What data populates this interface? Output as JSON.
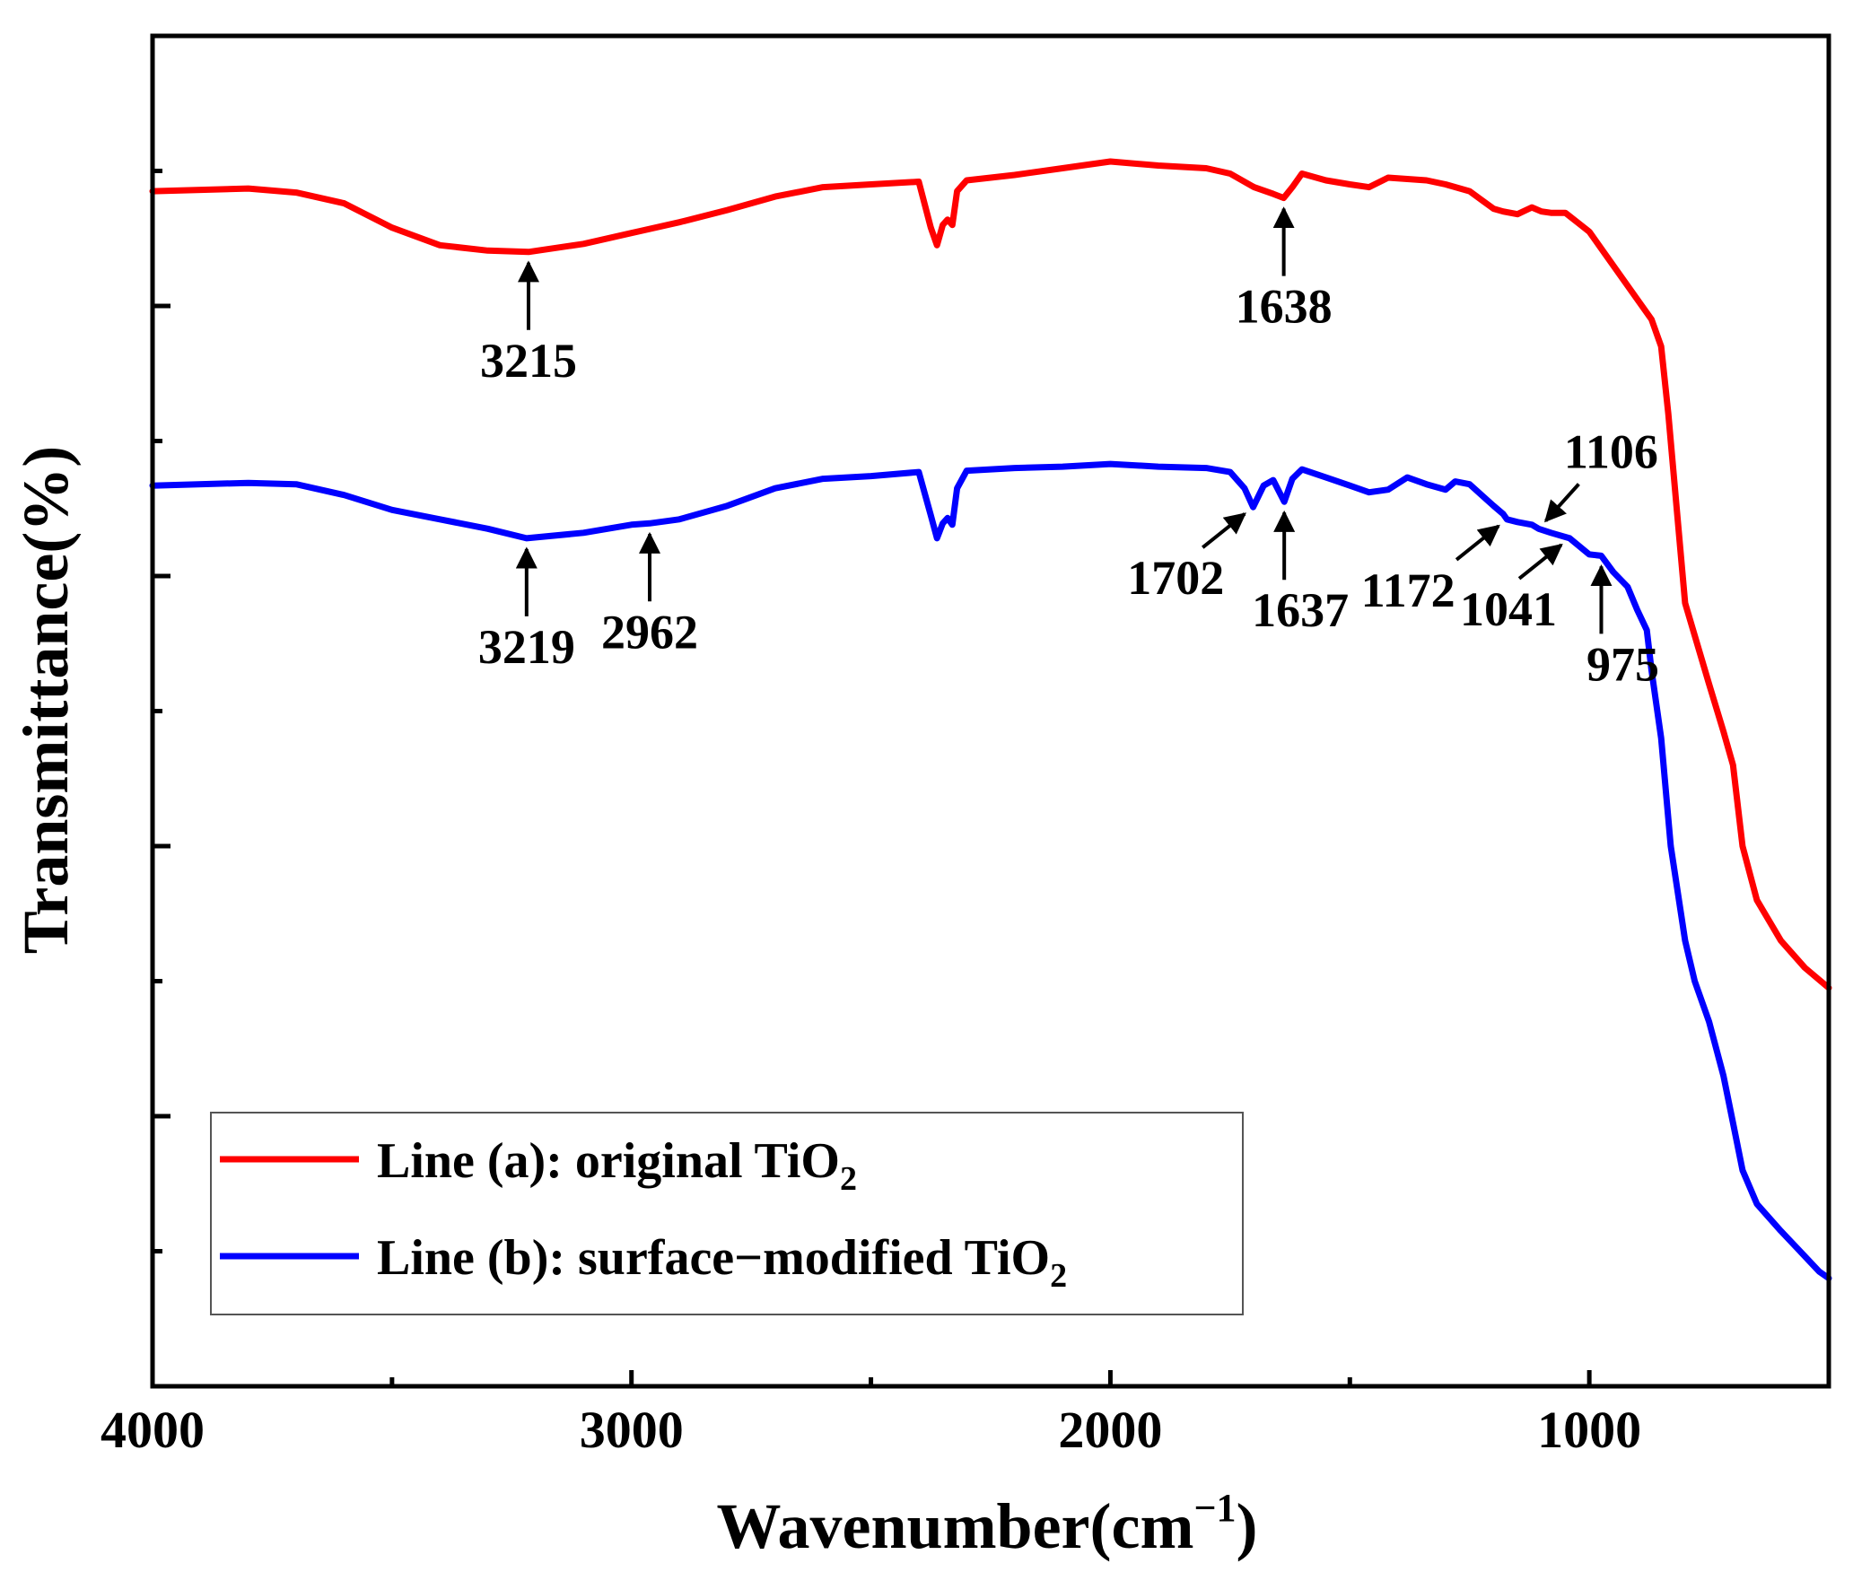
{
  "chart_data": {
    "type": "line",
    "title": "",
    "xlabel": "Wavenumber(cm",
    "xlabel_sup": "−1",
    "xlabel_close": ")",
    "ylabel": "Transmittance(%)",
    "xlim": [
      4000,
      500
    ],
    "ylim": [
      0,
      100
    ],
    "x_ticks": [
      4000,
      3000,
      2000,
      1000
    ],
    "x_tick_labels": [
      "4000",
      "3000",
      "2000",
      "1000"
    ],
    "x_minor_ticks": [
      3500,
      2500,
      1500
    ],
    "y_ticks": [
      10,
      20,
      30,
      40,
      50,
      60,
      70,
      80,
      90,
      100
    ],
    "y_tick_labels": [],
    "legend_position": "bottom-left",
    "series": [
      {
        "name": "Line (a): original TiO",
        "name_sub": "2",
        "color": "#ff0000",
        "x": [
          4000,
          3800,
          3700,
          3600,
          3500,
          3400,
          3300,
          3215,
          3100,
          3000,
          2900,
          2800,
          2700,
          2600,
          2500,
          2400,
          2375,
          2362,
          2350,
          2340,
          2330,
          2320,
          2300,
          2200,
          2100,
          2000,
          1900,
          1800,
          1750,
          1700,
          1660,
          1638,
          1620,
          1600,
          1550,
          1500,
          1460,
          1420,
          1380,
          1340,
          1300,
          1250,
          1200,
          1180,
          1150,
          1120,
          1100,
          1080,
          1050,
          1000,
          950,
          900,
          870,
          850,
          835,
          820,
          800,
          750,
          720,
          700,
          680,
          650,
          600,
          550,
          500
        ],
        "y": [
          88.5,
          88.7,
          88.4,
          87.6,
          85.8,
          84.5,
          84.1,
          84.0,
          84.6,
          85.4,
          86.2,
          87.1,
          88.1,
          88.8,
          89.0,
          89.2,
          85.8,
          84.5,
          86.0,
          86.4,
          86.0,
          88.5,
          89.3,
          89.7,
          90.2,
          90.7,
          90.4,
          90.2,
          89.8,
          88.8,
          88.3,
          88.0,
          88.8,
          89.8,
          89.3,
          89.0,
          88.8,
          89.5,
          89.4,
          89.3,
          89.0,
          88.5,
          87.2,
          87.0,
          86.8,
          87.3,
          87.0,
          86.9,
          86.9,
          85.5,
          83.0,
          80.5,
          79.0,
          77.0,
          72.0,
          66.0,
          58.0,
          52.0,
          48.5,
          46.0,
          40.0,
          36.0,
          33.0,
          31.0,
          29.5
        ]
      },
      {
        "name": "Line (b): surface−modified TiO",
        "name_sub": "2",
        "color": "#0000ff",
        "x": [
          4000,
          3800,
          3700,
          3600,
          3500,
          3400,
          3300,
          3219,
          3100,
          3000,
          2962,
          2900,
          2800,
          2700,
          2600,
          2500,
          2400,
          2375,
          2362,
          2350,
          2340,
          2330,
          2320,
          2300,
          2200,
          2100,
          2000,
          1900,
          1800,
          1750,
          1720,
          1702,
          1680,
          1660,
          1637,
          1620,
          1600,
          1550,
          1500,
          1460,
          1420,
          1380,
          1340,
          1300,
          1280,
          1250,
          1200,
          1180,
          1172,
          1150,
          1120,
          1106,
          1080,
          1041,
          1000,
          975,
          950,
          920,
          900,
          880,
          870,
          850,
          830,
          800,
          780,
          750,
          720,
          700,
          680,
          650,
          600,
          560,
          520,
          500
        ],
        "y": [
          66.7,
          66.9,
          66.8,
          66.0,
          64.9,
          64.2,
          63.5,
          62.8,
          63.2,
          63.8,
          63.9,
          64.2,
          65.2,
          66.5,
          67.2,
          67.4,
          67.7,
          64.5,
          62.8,
          63.9,
          64.3,
          63.8,
          66.5,
          67.8,
          68.0,
          68.1,
          68.3,
          68.1,
          68.0,
          67.7,
          66.5,
          65.1,
          66.7,
          67.1,
          65.5,
          67.2,
          67.9,
          67.3,
          66.7,
          66.2,
          66.4,
          67.3,
          66.8,
          66.4,
          67.0,
          66.8,
          65.2,
          64.6,
          64.2,
          64.0,
          63.8,
          63.5,
          63.2,
          62.8,
          61.6,
          61.5,
          60.3,
          59.2,
          57.5,
          56.0,
          53.0,
          48.0,
          40.0,
          33.0,
          30.0,
          27.0,
          23.0,
          19.5,
          16.0,
          13.5,
          11.5,
          10.0,
          8.5,
          8.0
        ]
      }
    ],
    "annotations": [
      {
        "label": "3215",
        "series": 0,
        "x": 3215,
        "direction": "up"
      },
      {
        "label": "1638",
        "series": 0,
        "x": 1638,
        "direction": "up"
      },
      {
        "label": "3219",
        "series": 1,
        "x": 3219,
        "direction": "up"
      },
      {
        "label": "2962",
        "series": 1,
        "x": 2962,
        "direction": "up"
      },
      {
        "label": "1702",
        "series": 1,
        "x": 1702,
        "direction": "up-right"
      },
      {
        "label": "1637",
        "series": 1,
        "x": 1637,
        "direction": "up"
      },
      {
        "label": "1172",
        "series": 1,
        "x": 1172,
        "direction": "up-right"
      },
      {
        "label": "1106",
        "series": 1,
        "x": 1106,
        "direction": "down-left"
      },
      {
        "label": "1041",
        "series": 1,
        "x": 1041,
        "direction": "up-right"
      },
      {
        "label": "975",
        "series": 1,
        "x": 975,
        "direction": "up"
      }
    ]
  }
}
